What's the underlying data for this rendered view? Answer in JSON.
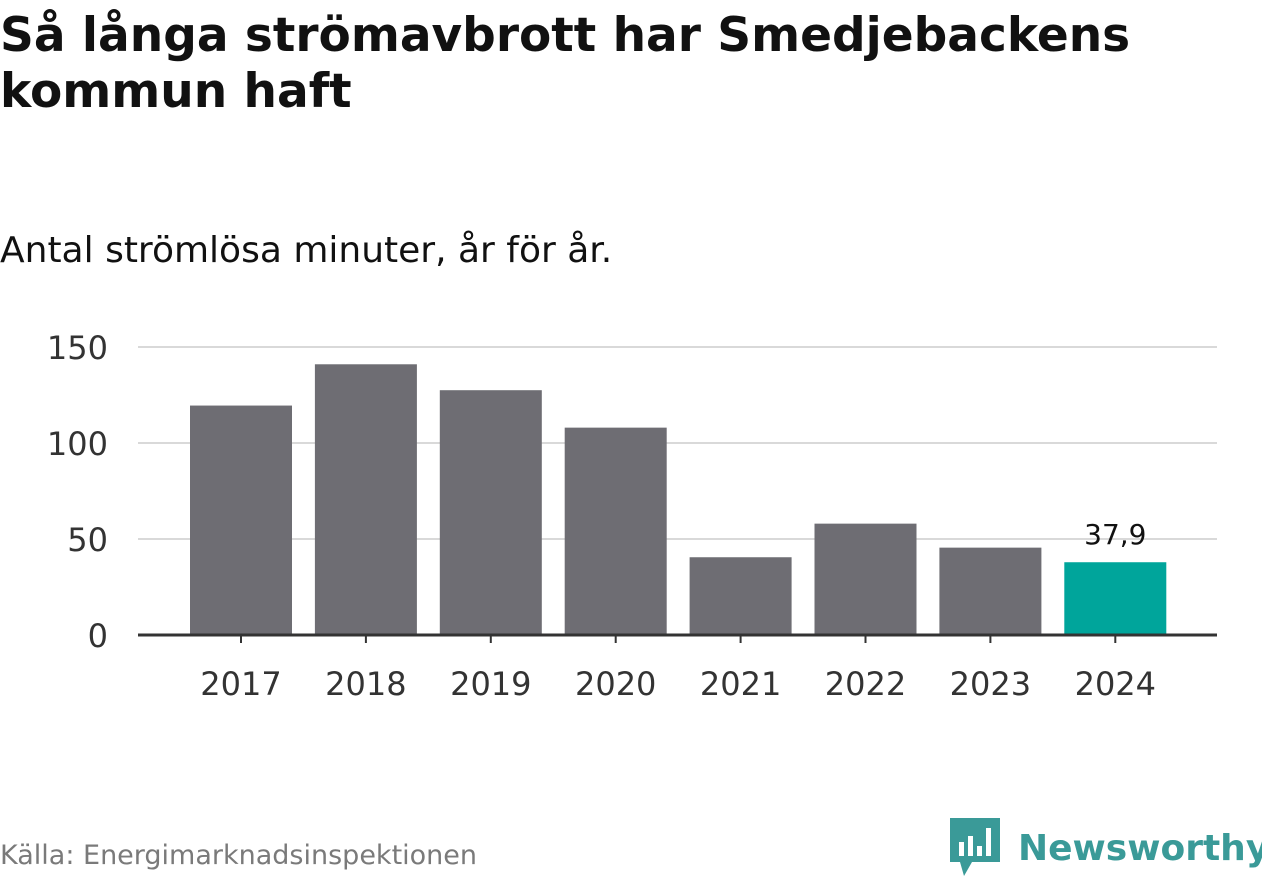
{
  "title": "Så långa strömavbrott har Smedjebackens kommun haft",
  "subtitle": "Antal strömlösa minuter, år för år.",
  "source": "Källa: Energimarknadsinspektionen",
  "brand": "Newsworthy",
  "colors": {
    "bar": "#6e6d73",
    "highlight": "#00a59b",
    "grid": "#d9d9d9",
    "axis": "#333333",
    "brand": "#3a9a98"
  },
  "chart_data": {
    "type": "bar",
    "categories": [
      "2017",
      "2018",
      "2019",
      "2020",
      "2021",
      "2022",
      "2023",
      "2024"
    ],
    "values": [
      119.5,
      141,
      127.5,
      108,
      40.5,
      58,
      45.5,
      37.9
    ],
    "highlight_index": 7,
    "data_labels": [
      {
        "index": 7,
        "text": "37,9"
      }
    ],
    "ylim": [
      0,
      150
    ],
    "yticks": [
      0,
      50,
      100,
      150
    ],
    "title": "Så långa strömavbrott har Smedjebackens kommun haft",
    "xlabel": "",
    "ylabel": "",
    "grid": true
  }
}
